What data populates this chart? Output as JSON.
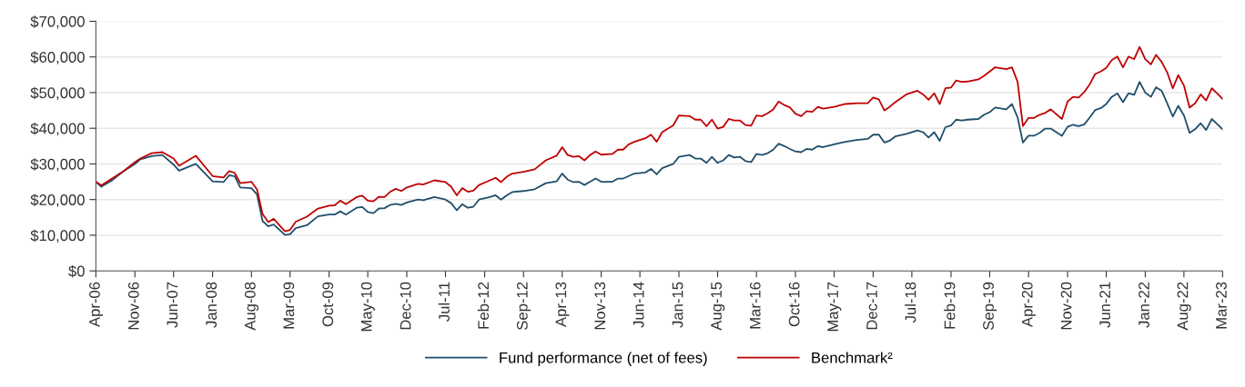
{
  "chart_data": {
    "type": "line",
    "x": [
      "2006-04",
      "2006-05",
      "2006-07",
      "2006-09",
      "2006-11",
      "2006-12",
      "2007-02",
      "2007-04",
      "2007-06",
      "2007-07",
      "2007-10",
      "2008-01",
      "2008-03",
      "2008-04",
      "2008-05",
      "2008-06",
      "2008-08",
      "2008-09",
      "2008-10",
      "2008-11",
      "2008-12",
      "2009-02",
      "2009-03",
      "2009-04",
      "2009-06",
      "2009-08",
      "2009-10",
      "2009-11",
      "2009-12",
      "2010-01",
      "2010-03",
      "2010-04",
      "2010-05",
      "2010-06",
      "2010-07",
      "2010-08",
      "2010-09",
      "2010-10",
      "2010-11",
      "2010-12",
      "2011-02",
      "2011-03",
      "2011-05",
      "2011-07",
      "2011-08",
      "2011-09",
      "2011-10",
      "2011-11",
      "2011-12",
      "2012-01",
      "2012-03",
      "2012-04",
      "2012-05",
      "2012-06",
      "2012-07",
      "2012-09",
      "2012-11",
      "2013-01",
      "2013-03",
      "2013-04",
      "2013-05",
      "2013-06",
      "2013-07",
      "2013-08",
      "2013-09",
      "2013-10",
      "2013-11",
      "2014-01",
      "2014-02",
      "2014-03",
      "2014-04",
      "2014-05",
      "2014-07",
      "2014-08",
      "2014-09",
      "2014-10",
      "2014-12",
      "2015-01",
      "2015-03",
      "2015-04",
      "2015-05",
      "2015-06",
      "2015-07",
      "2015-08",
      "2015-09",
      "2015-10",
      "2015-11",
      "2015-12",
      "2016-01",
      "2016-02",
      "2016-03",
      "2016-04",
      "2016-05",
      "2016-06",
      "2016-07",
      "2016-08",
      "2016-09",
      "2016-10",
      "2016-11",
      "2016-12",
      "2017-01",
      "2017-02",
      "2017-03",
      "2017-05",
      "2017-07",
      "2017-09",
      "2017-11",
      "2017-12",
      "2018-01",
      "2018-02",
      "2018-03",
      "2018-04",
      "2018-06",
      "2018-08",
      "2018-09",
      "2018-10",
      "2018-11",
      "2018-12",
      "2019-01",
      "2019-02",
      "2019-03",
      "2019-04",
      "2019-05",
      "2019-07",
      "2019-08",
      "2019-09",
      "2019-10",
      "2019-12",
      "2020-01",
      "2020-02",
      "2020-03",
      "2020-04",
      "2020-05",
      "2020-06",
      "2020-07",
      "2020-08",
      "2020-10",
      "2020-11",
      "2020-12",
      "2021-01",
      "2021-02",
      "2021-03",
      "2021-04",
      "2021-05",
      "2021-06",
      "2021-07",
      "2021-08",
      "2021-09",
      "2021-10",
      "2021-11",
      "2021-12",
      "2022-01",
      "2022-02",
      "2022-03",
      "2022-04",
      "2022-05",
      "2022-06",
      "2022-07",
      "2022-08",
      "2022-09",
      "2022-10",
      "2022-11",
      "2022-12",
      "2023-01",
      "2023-02",
      "2023-03"
    ],
    "series": [
      {
        "name": "Fund performance (net of fees)",
        "color": "#1f4e6b",
        "values": [
          25000,
          23600,
          25500,
          28000,
          30000,
          31300,
          32200,
          32500,
          29800,
          28100,
          30000,
          25100,
          24900,
          26800,
          26600,
          23400,
          23200,
          21400,
          14000,
          12500,
          13000,
          10100,
          10300,
          12000,
          12800,
          15300,
          15800,
          15800,
          16700,
          15800,
          17700,
          17900,
          16500,
          16200,
          17500,
          17600,
          18500,
          18800,
          18500,
          19200,
          20000,
          19800,
          20700,
          20000,
          19000,
          17000,
          18700,
          17700,
          18000,
          20000,
          20700,
          21200,
          20000,
          21200,
          22100,
          22400,
          22900,
          24600,
          25100,
          27300,
          25600,
          24900,
          25000,
          24100,
          25000,
          25900,
          25000,
          25000,
          25900,
          25900,
          26600,
          27300,
          27600,
          28600,
          27100,
          28800,
          30000,
          32000,
          32500,
          31500,
          31500,
          30300,
          32000,
          30300,
          31000,
          32500,
          31800,
          32000,
          30800,
          30500,
          32800,
          32500,
          33000,
          34000,
          35700,
          35000,
          34200,
          33500,
          33300,
          34200,
          34000,
          35000,
          34700,
          35500,
          36200,
          36700,
          37000,
          38200,
          38200,
          36000,
          36500,
          37700,
          38400,
          39400,
          38900,
          37400,
          38900,
          36500,
          40300,
          40800,
          42400,
          42200,
          42400,
          42600,
          43800,
          44500,
          45800,
          45300,
          46800,
          43100,
          36000,
          37900,
          37900,
          38700,
          39900,
          39900,
          37900,
          40400,
          41000,
          40600,
          41100,
          42900,
          45100,
          45600,
          46800,
          48800,
          49800,
          47300,
          49800,
          49400,
          53000,
          50000,
          48800,
          51500,
          50500,
          47000,
          43300,
          46300,
          43600,
          38700,
          39700,
          41400,
          39500,
          42600,
          41100,
          39700
        ]
      },
      {
        "name": "Benchmark²",
        "color": "#c00000",
        "values": [
          25000,
          24000,
          26000,
          28000,
          30500,
          31500,
          33000,
          33300,
          31500,
          29500,
          32300,
          26600,
          26200,
          28000,
          27500,
          24600,
          25000,
          22800,
          16000,
          13700,
          14600,
          11100,
          11500,
          13800,
          15200,
          17500,
          18300,
          18400,
          19700,
          18700,
          20700,
          21100,
          19700,
          19500,
          20800,
          20700,
          22200,
          23000,
          22400,
          23400,
          24400,
          24200,
          25400,
          24900,
          23600,
          21200,
          23200,
          22200,
          22500,
          24100,
          25400,
          26100,
          24900,
          26400,
          27300,
          27800,
          28500,
          31000,
          32300,
          34700,
          32500,
          32000,
          32200,
          31000,
          32500,
          33500,
          32600,
          32800,
          34000,
          34000,
          35500,
          36200,
          37200,
          38200,
          36200,
          38900,
          40800,
          43600,
          43400,
          42400,
          42400,
          40600,
          42400,
          39900,
          40400,
          42600,
          42200,
          42200,
          40900,
          40700,
          43600,
          43400,
          44200,
          45300,
          47500,
          46500,
          45800,
          44100,
          43400,
          44800,
          44600,
          46000,
          45500,
          46000,
          46800,
          47000,
          47000,
          48600,
          48100,
          45000,
          46000,
          47300,
          49500,
          50500,
          49500,
          48000,
          49800,
          46800,
          51200,
          51400,
          53400,
          53000,
          53100,
          53700,
          54700,
          55900,
          57100,
          56600,
          57100,
          53000,
          40600,
          42900,
          42900,
          43800,
          44300,
          45300,
          42600,
          47500,
          48800,
          48600,
          50200,
          52200,
          55200,
          55900,
          56900,
          59100,
          60100,
          57100,
          60100,
          59400,
          62800,
          59400,
          57900,
          60600,
          58600,
          55700,
          51200,
          54900,
          52000,
          45800,
          47000,
          49500,
          47800,
          51200,
          49700,
          48200
        ]
      }
    ],
    "xlim": [
      "2006-04",
      "2023-03"
    ],
    "xticks": [
      {
        "value": "2006-04",
        "label": "Apr-06"
      },
      {
        "value": "2006-11",
        "label": "Nov-06"
      },
      {
        "value": "2007-06",
        "label": "Jun-07"
      },
      {
        "value": "2008-01",
        "label": "Jan-08"
      },
      {
        "value": "2008-08",
        "label": "Aug-08"
      },
      {
        "value": "2009-03",
        "label": "Mar-09"
      },
      {
        "value": "2009-10",
        "label": "Oct-09"
      },
      {
        "value": "2010-05",
        "label": "May-10"
      },
      {
        "value": "2010-12",
        "label": "Dec-10"
      },
      {
        "value": "2011-07",
        "label": "Jul-11"
      },
      {
        "value": "2012-02",
        "label": "Feb-12"
      },
      {
        "value": "2012-09",
        "label": "Sep-12"
      },
      {
        "value": "2013-04",
        "label": "Apr-13"
      },
      {
        "value": "2013-11",
        "label": "Nov-13"
      },
      {
        "value": "2014-06",
        "label": "Jun-14"
      },
      {
        "value": "2015-01",
        "label": "Jan-15"
      },
      {
        "value": "2015-08",
        "label": "Aug-15"
      },
      {
        "value": "2016-03",
        "label": "Mar-16"
      },
      {
        "value": "2016-10",
        "label": "Oct-16"
      },
      {
        "value": "2017-05",
        "label": "May-17"
      },
      {
        "value": "2017-12",
        "label": "Dec-17"
      },
      {
        "value": "2018-07",
        "label": "Jul-18"
      },
      {
        "value": "2019-02",
        "label": "Feb-19"
      },
      {
        "value": "2019-09",
        "label": "Sep-19"
      },
      {
        "value": "2020-04",
        "label": "Apr-20"
      },
      {
        "value": "2020-11",
        "label": "Nov-20"
      },
      {
        "value": "2021-06",
        "label": "Jun-21"
      },
      {
        "value": "2022-01",
        "label": "Jan-22"
      },
      {
        "value": "2022-08",
        "label": "Aug-22"
      },
      {
        "value": "2023-03",
        "label": "Mar-23"
      }
    ],
    "ylim": [
      0,
      70000
    ],
    "yticks": [
      {
        "value": 0,
        "label": "$0"
      },
      {
        "value": 10000,
        "label": "$10,000"
      },
      {
        "value": 20000,
        "label": "$20,000"
      },
      {
        "value": 30000,
        "label": "$30,000"
      },
      {
        "value": 40000,
        "label": "$40,000"
      },
      {
        "value": 50000,
        "label": "$50,000"
      },
      {
        "value": 60000,
        "label": "$60,000"
      },
      {
        "value": 70000,
        "label": "$70,000"
      }
    ],
    "grid": "y",
    "legend": "bottom",
    "marker": "none",
    "line_style": "solid"
  }
}
